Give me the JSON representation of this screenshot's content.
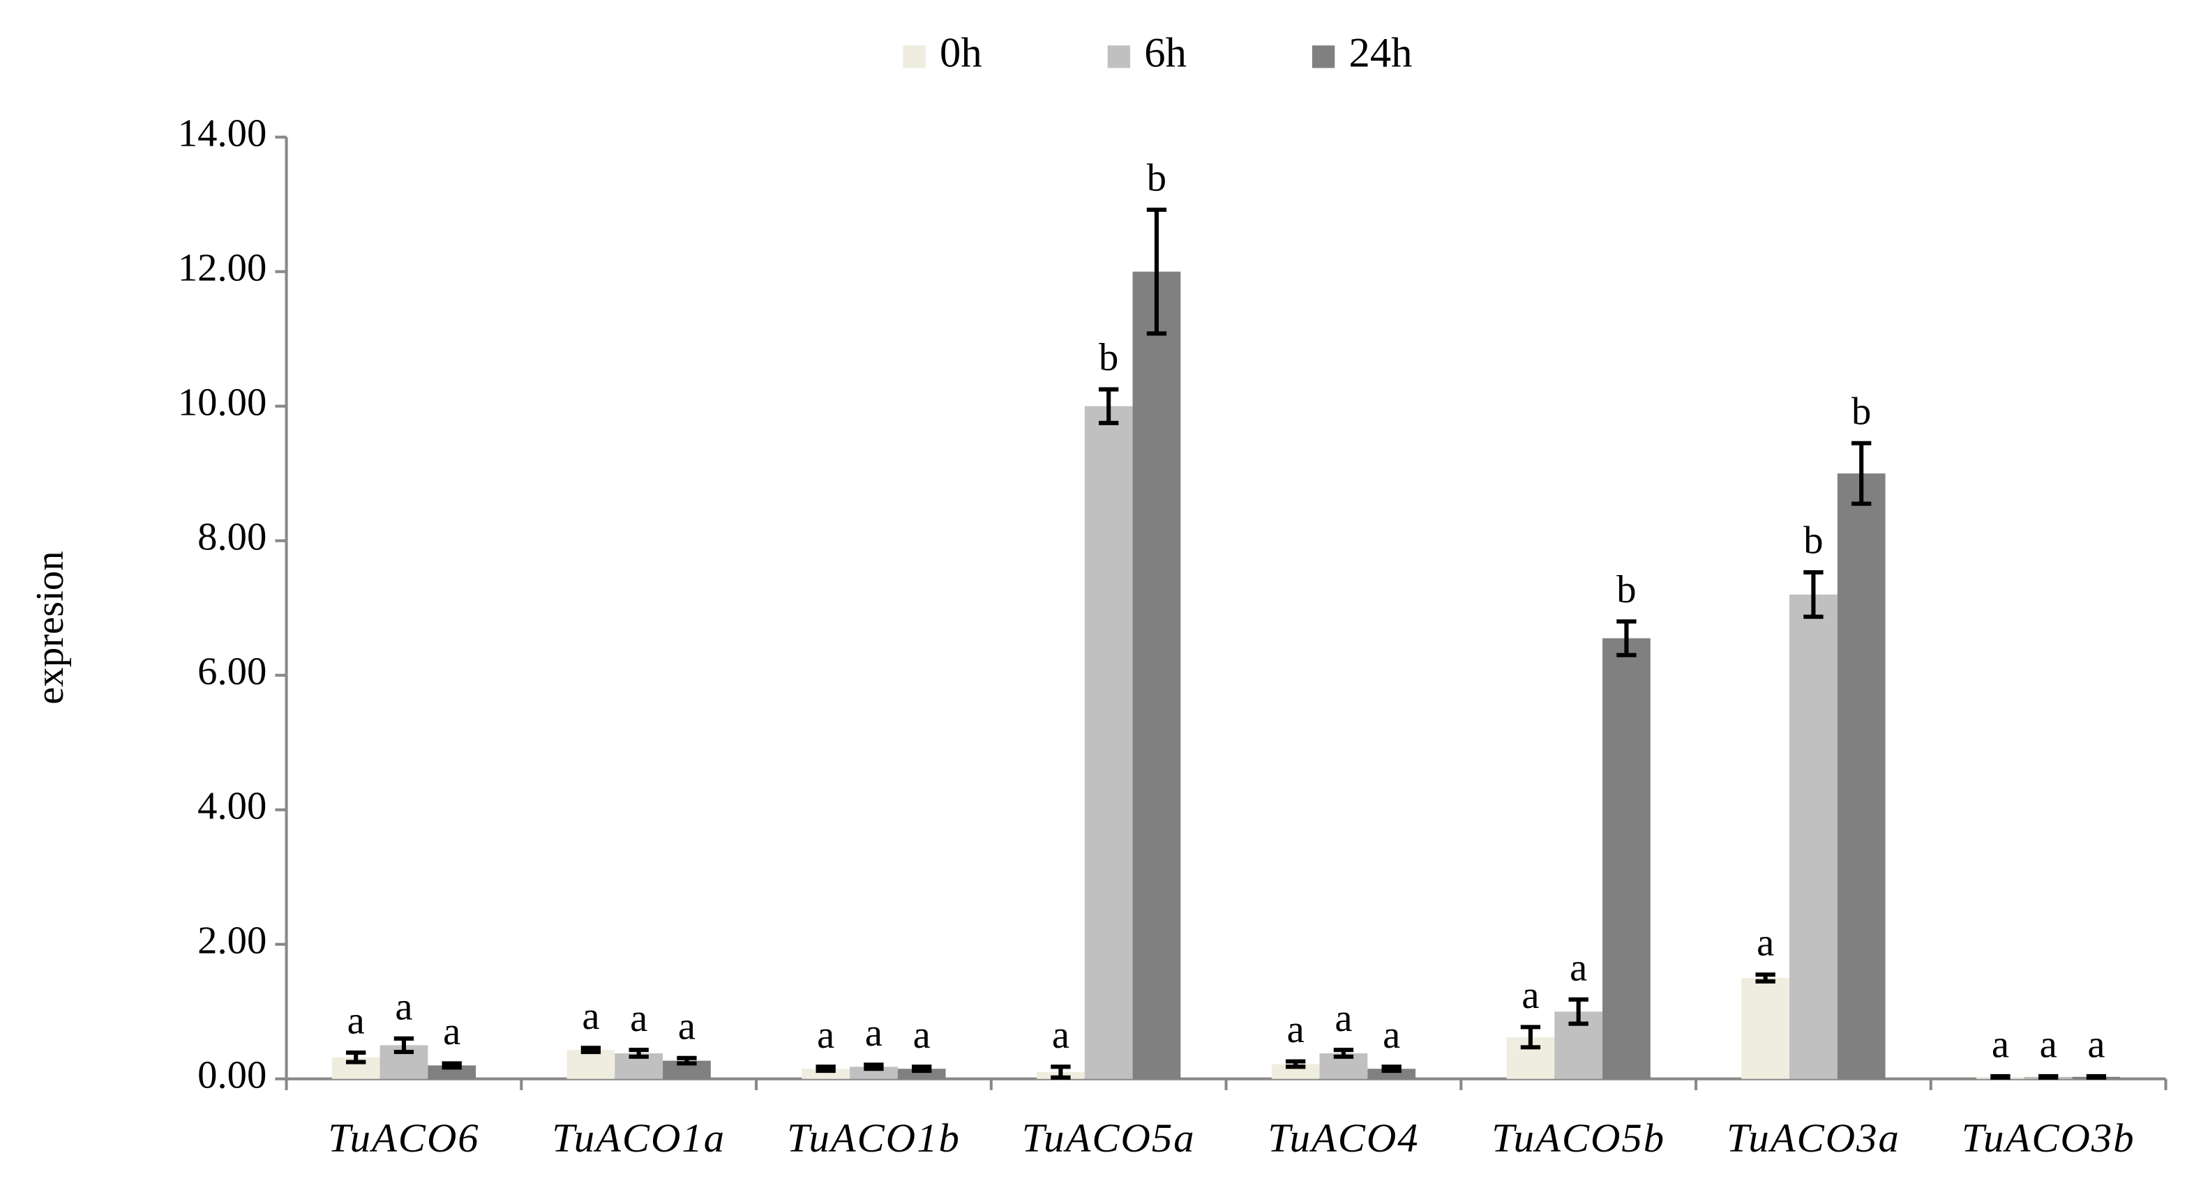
{
  "chart_data": {
    "type": "bar",
    "y_label": "expresion",
    "categories": [
      "TuACO6",
      "TuACO1a",
      "TuACO1b",
      "TuACO5a",
      "TuACO4",
      "TuACO5b",
      "TuACO3a",
      "TuACO3b"
    ],
    "series": [
      {
        "name": "0h",
        "color": "#eeeddf",
        "values": [
          0.32,
          0.43,
          0.15,
          0.1,
          0.22,
          0.62,
          1.5,
          0.03
        ],
        "errors": [
          0.07,
          0.03,
          0.03,
          0.08,
          0.04,
          0.15,
          0.05,
          0.01
        ],
        "letters": [
          "a",
          "a",
          "a",
          "a",
          "a",
          "a",
          "a",
          "a"
        ]
      },
      {
        "name": "6h",
        "color": "#c0c0c0",
        "values": [
          0.5,
          0.38,
          0.18,
          10.0,
          0.38,
          1.0,
          7.2,
          0.03
        ],
        "errors": [
          0.1,
          0.05,
          0.03,
          0.25,
          0.05,
          0.18,
          0.33,
          0.01
        ],
        "letters": [
          "a",
          "a",
          "a",
          "b",
          "a",
          "a",
          "b",
          "a"
        ]
      },
      {
        "name": "24h",
        "color": "#808080",
        "values": [
          0.2,
          0.27,
          0.15,
          12.0,
          0.15,
          6.55,
          9.0,
          0.03
        ],
        "errors": [
          0.03,
          0.04,
          0.03,
          0.92,
          0.03,
          0.25,
          0.45,
          0.01
        ],
        "letters": [
          "a",
          "a",
          "a",
          "b",
          "a",
          "b",
          "b",
          "a"
        ]
      }
    ],
    "ylim": [
      0,
      14
    ],
    "yticks": [
      {
        "value": 0,
        "label": "0.00"
      },
      {
        "value": 2,
        "label": "2.00"
      },
      {
        "value": 4,
        "label": "4.00"
      },
      {
        "value": 6,
        "label": "6.00"
      },
      {
        "value": 8,
        "label": "8.00"
      },
      {
        "value": 10,
        "label": "10.00"
      },
      {
        "value": 12,
        "label": "12.00"
      },
      {
        "value": 14,
        "label": "14.00"
      }
    ],
    "legend_position": "top"
  }
}
